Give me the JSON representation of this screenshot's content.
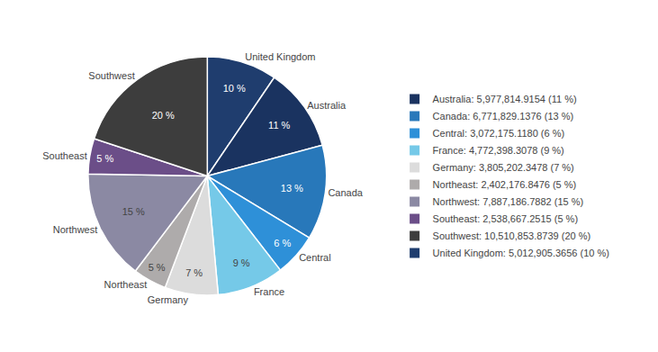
{
  "chart_data": {
    "type": "pie",
    "categories": [
      "United Kingdom",
      "Australia",
      "Canada",
      "Central",
      "France",
      "Germany",
      "Northeast",
      "Northwest",
      "Southeast",
      "Southwest"
    ],
    "values": [
      5012905.3656,
      5977814.9154,
      6771829.1376,
      3072175.118,
      4772398.3078,
      3805202.3478,
      2402176.8476,
      7887186.7882,
      2538667.2515,
      10510853.8739
    ],
    "colors": [
      "#1F3D6E",
      "#1A3360",
      "#2878BA",
      "#2E90D8",
      "#75C9E8",
      "#DCDCDC",
      "#AEABAB",
      "#8B89A3",
      "#6B4E88",
      "#3D3D3D"
    ],
    "percentages": [
      10,
      11,
      13,
      6,
      9,
      7,
      5,
      15,
      5,
      20
    ],
    "percentage_labels": [
      "10 %",
      "11 %",
      "13 %",
      "6 %",
      "9 %",
      "7 %",
      "5 %",
      "15 %",
      "5 %",
      "20 %"
    ],
    "legend": "right",
    "legend_order": [
      "Australia",
      "Canada",
      "Central",
      "France",
      "Germany",
      "Northeast",
      "Northwest",
      "Southeast",
      "Southwest",
      "United Kingdom"
    ],
    "legend_labels": [
      "Australia: 5,977,814.9154 (11 %)",
      "Canada: 6,771,829.1376 (13 %)",
      "Central: 3,072,175.1180 (6 %)",
      "France: 4,772,398.3078 (9 %)",
      "Germany: 3,805,202.3478 (7 %)",
      "Northeast: 2,402,176.8476 (5 %)",
      "Northwest: 7,887,186.7882 (15 %)",
      "Southeast: 2,538,667.2515 (5 %)",
      "Southwest: 10,510,853.8739 (20 %)",
      "United Kingdom: 5,012,905.3656 (10 %)"
    ]
  }
}
